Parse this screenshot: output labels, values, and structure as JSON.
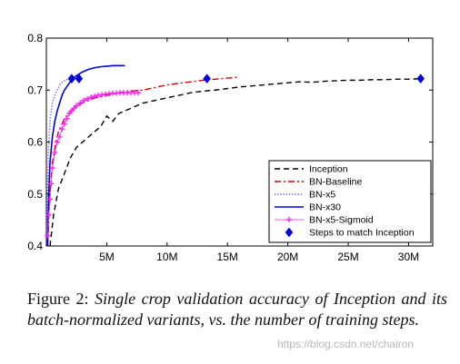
{
  "caption": {
    "lead": "Figure 2:",
    "body": "Single crop validation accuracy of Inception and its batch-normalized variants, vs.  the number of training steps."
  },
  "watermark": "https://blog.csdn.net/chairon",
  "chart_data": {
    "type": "line",
    "title": "",
    "xlabel": "",
    "ylabel": "",
    "xlim": [
      0,
      32000000
    ],
    "ylim": [
      0.4,
      0.8
    ],
    "x_ticks": [
      {
        "value": 5000000,
        "label": "5M"
      },
      {
        "value": 10000000,
        "label": "10M"
      },
      {
        "value": 15000000,
        "label": "15M"
      },
      {
        "value": 20000000,
        "label": "20M"
      },
      {
        "value": 25000000,
        "label": "25M"
      },
      {
        "value": 30000000,
        "label": "30M"
      }
    ],
    "y_ticks": [
      {
        "value": 0.4,
        "label": "0.4"
      },
      {
        "value": 0.5,
        "label": "0.5"
      },
      {
        "value": 0.6,
        "label": "0.6"
      },
      {
        "value": 0.7,
        "label": "0.7"
      },
      {
        "value": 0.8,
        "label": "0.8"
      }
    ],
    "grid": false,
    "legend_position": "bottom-right",
    "series": [
      {
        "name": "Inception",
        "color": "#000000",
        "style": "dashed",
        "x": [
          300000,
          600000,
          1000000,
          1500000,
          2000000,
          2500000,
          3000000,
          3500000,
          4000000,
          4500000,
          5000000,
          5500000,
          6000000,
          6500000,
          7000000,
          8000000,
          9000000,
          10000000,
          11000000,
          12000000,
          13000000,
          14000000,
          15000000,
          16000000,
          17000000,
          18000000,
          19000000,
          20000000,
          21000000,
          22000000,
          23000000,
          24000000,
          25000000,
          26000000,
          27000000,
          28000000,
          29000000,
          30000000,
          31000000
        ],
        "y": [
          0.4,
          0.46,
          0.51,
          0.54,
          0.57,
          0.59,
          0.6,
          0.61,
          0.62,
          0.63,
          0.65,
          0.64,
          0.655,
          0.66,
          0.665,
          0.675,
          0.68,
          0.685,
          0.69,
          0.695,
          0.698,
          0.7,
          0.703,
          0.706,
          0.708,
          0.71,
          0.712,
          0.714,
          0.716,
          0.715,
          0.717,
          0.718,
          0.719,
          0.719,
          0.72,
          0.72,
          0.721,
          0.721,
          0.722
        ]
      },
      {
        "name": "BN-Baseline",
        "color": "#d40000",
        "style": "dashdot",
        "x": [
          100000,
          300000,
          500000,
          800000,
          1000000,
          1500000,
          2000000,
          2500000,
          3000000,
          4000000,
          5000000,
          6000000,
          7000000,
          8000000,
          9000000,
          10000000,
          11000000,
          12000000,
          13000000,
          14000000,
          15000000,
          16000000
        ],
        "y": [
          0.4,
          0.5,
          0.56,
          0.6,
          0.62,
          0.645,
          0.66,
          0.67,
          0.675,
          0.685,
          0.69,
          0.695,
          0.698,
          0.7,
          0.705,
          0.71,
          0.713,
          0.716,
          0.719,
          0.721,
          0.723,
          0.725
        ]
      },
      {
        "name": "BN-x5",
        "color": "#5555ff",
        "style": "dotted",
        "x": [
          50000,
          100000,
          150000,
          200000,
          300000,
          400000,
          500000,
          700000,
          900000,
          1100000,
          1300000,
          1500000,
          1700000,
          1900000
        ],
        "y": [
          0.4,
          0.5,
          0.56,
          0.6,
          0.64,
          0.66,
          0.675,
          0.69,
          0.7,
          0.71,
          0.715,
          0.718,
          0.72,
          0.722
        ]
      },
      {
        "name": "BN-x30",
        "color": "#0000dd",
        "style": "solid",
        "x": [
          100000,
          200000,
          300000,
          500000,
          700000,
          900000,
          1100000,
          1300000,
          1500000,
          1800000,
          2100000,
          2500000,
          3000000,
          3500000,
          4000000,
          4500000,
          5000000,
          5500000,
          6000000,
          6500000
        ],
        "y": [
          0.4,
          0.5,
          0.56,
          0.61,
          0.64,
          0.66,
          0.675,
          0.69,
          0.7,
          0.71,
          0.72,
          0.728,
          0.735,
          0.74,
          0.743,
          0.745,
          0.746,
          0.747,
          0.747,
          0.747
        ]
      },
      {
        "name": "BN-x5-Sigmoid",
        "color": "#ff22ff",
        "style": "plus",
        "x": [
          100000,
          200000,
          300000,
          400000,
          500000,
          700000,
          900000,
          1100000,
          1300000,
          1500000,
          1700000,
          1900000,
          2100000,
          2300000,
          2500000,
          2800000,
          3100000,
          3400000,
          3700000,
          4000000,
          4300000,
          4600000,
          4900000,
          5200000,
          5500000,
          5800000,
          6100000,
          6400000,
          6700000,
          7000000,
          7300000,
          7600000
        ],
        "y": [
          0.42,
          0.46,
          0.49,
          0.52,
          0.55,
          0.58,
          0.6,
          0.61,
          0.625,
          0.635,
          0.645,
          0.655,
          0.66,
          0.665,
          0.67,
          0.675,
          0.68,
          0.683,
          0.686,
          0.688,
          0.69,
          0.691,
          0.692,
          0.693,
          0.694,
          0.694,
          0.695,
          0.695,
          0.695,
          0.695,
          0.695,
          0.695
        ]
      },
      {
        "name": "Steps to match Inception",
        "color": "#0000dd",
        "style": "diamond",
        "x": [
          2100000,
          2700000,
          13300000,
          31000000
        ],
        "y": [
          0.722,
          0.722,
          0.722,
          0.722
        ]
      }
    ]
  }
}
